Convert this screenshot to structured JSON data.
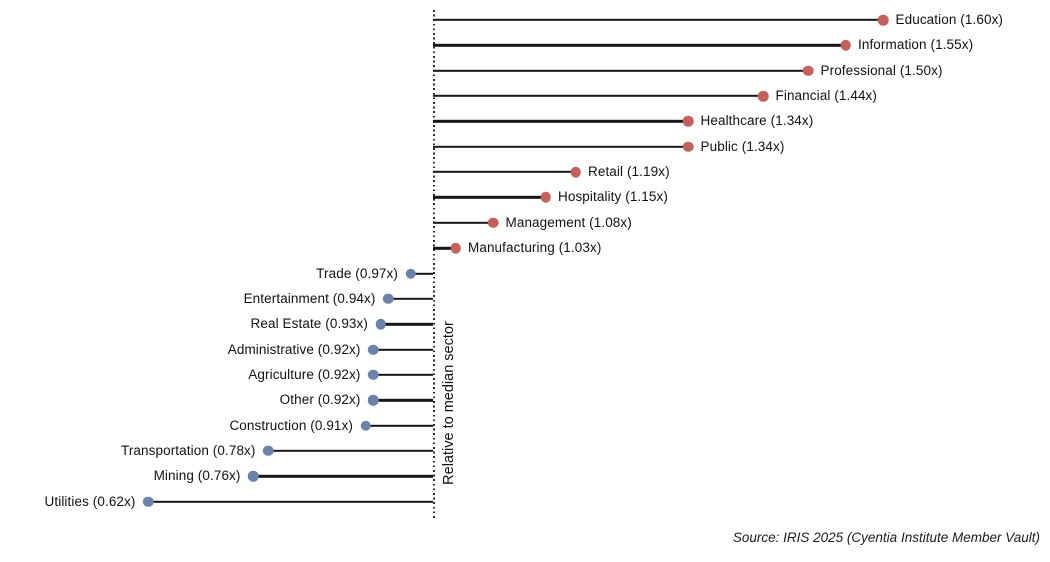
{
  "chart_data": {
    "type": "bar",
    "variant": "horizontal-lollipop-diverging",
    "title": "",
    "axis_label": "Relative to median sector",
    "baseline_value": 1.0,
    "value_suffix": "x",
    "xlim": [
      0.42,
      1.82
    ],
    "grid": false,
    "legend": "none",
    "categories": [
      "Education",
      "Information",
      "Professional",
      "Financial",
      "Healthcare",
      "Public",
      "Retail",
      "Hospitality",
      "Management",
      "Manufacturing",
      "Trade",
      "Entertainment",
      "Real Estate",
      "Administrative",
      "Agriculture",
      "Other",
      "Construction",
      "Transportation",
      "Mining",
      "Utilities"
    ],
    "values": [
      1.6,
      1.55,
      1.5,
      1.44,
      1.34,
      1.34,
      1.19,
      1.15,
      1.08,
      1.03,
      0.97,
      0.94,
      0.93,
      0.92,
      0.92,
      0.92,
      0.91,
      0.78,
      0.76,
      0.62
    ],
    "point_labels": [
      "Education (1.60x)",
      "Information (1.55x)",
      "Professional (1.50x)",
      "Financial (1.44x)",
      "Healthcare (1.34x)",
      "Public (1.34x)",
      "Retail (1.19x)",
      "Hospitality (1.15x)",
      "Management (1.08x)",
      "Manufacturing (1.03x)",
      "Trade (0.97x)",
      "Entertainment (0.94x)",
      "Real Estate (0.93x)",
      "Administrative (0.92x)",
      "Agriculture (0.92x)",
      "Other (0.92x)",
      "Construction (0.91x)",
      "Transportation (0.78x)",
      "Mining (0.76x)",
      "Utilities (0.62x)"
    ],
    "colors": {
      "above_median_dot": "#c4615c",
      "below_median_dot": "#6b83ab",
      "stem": "#161616",
      "baseline": "#2a2a2a"
    }
  },
  "source": "Source: IRIS 2025 (Cyentia Institute Member Vault)"
}
